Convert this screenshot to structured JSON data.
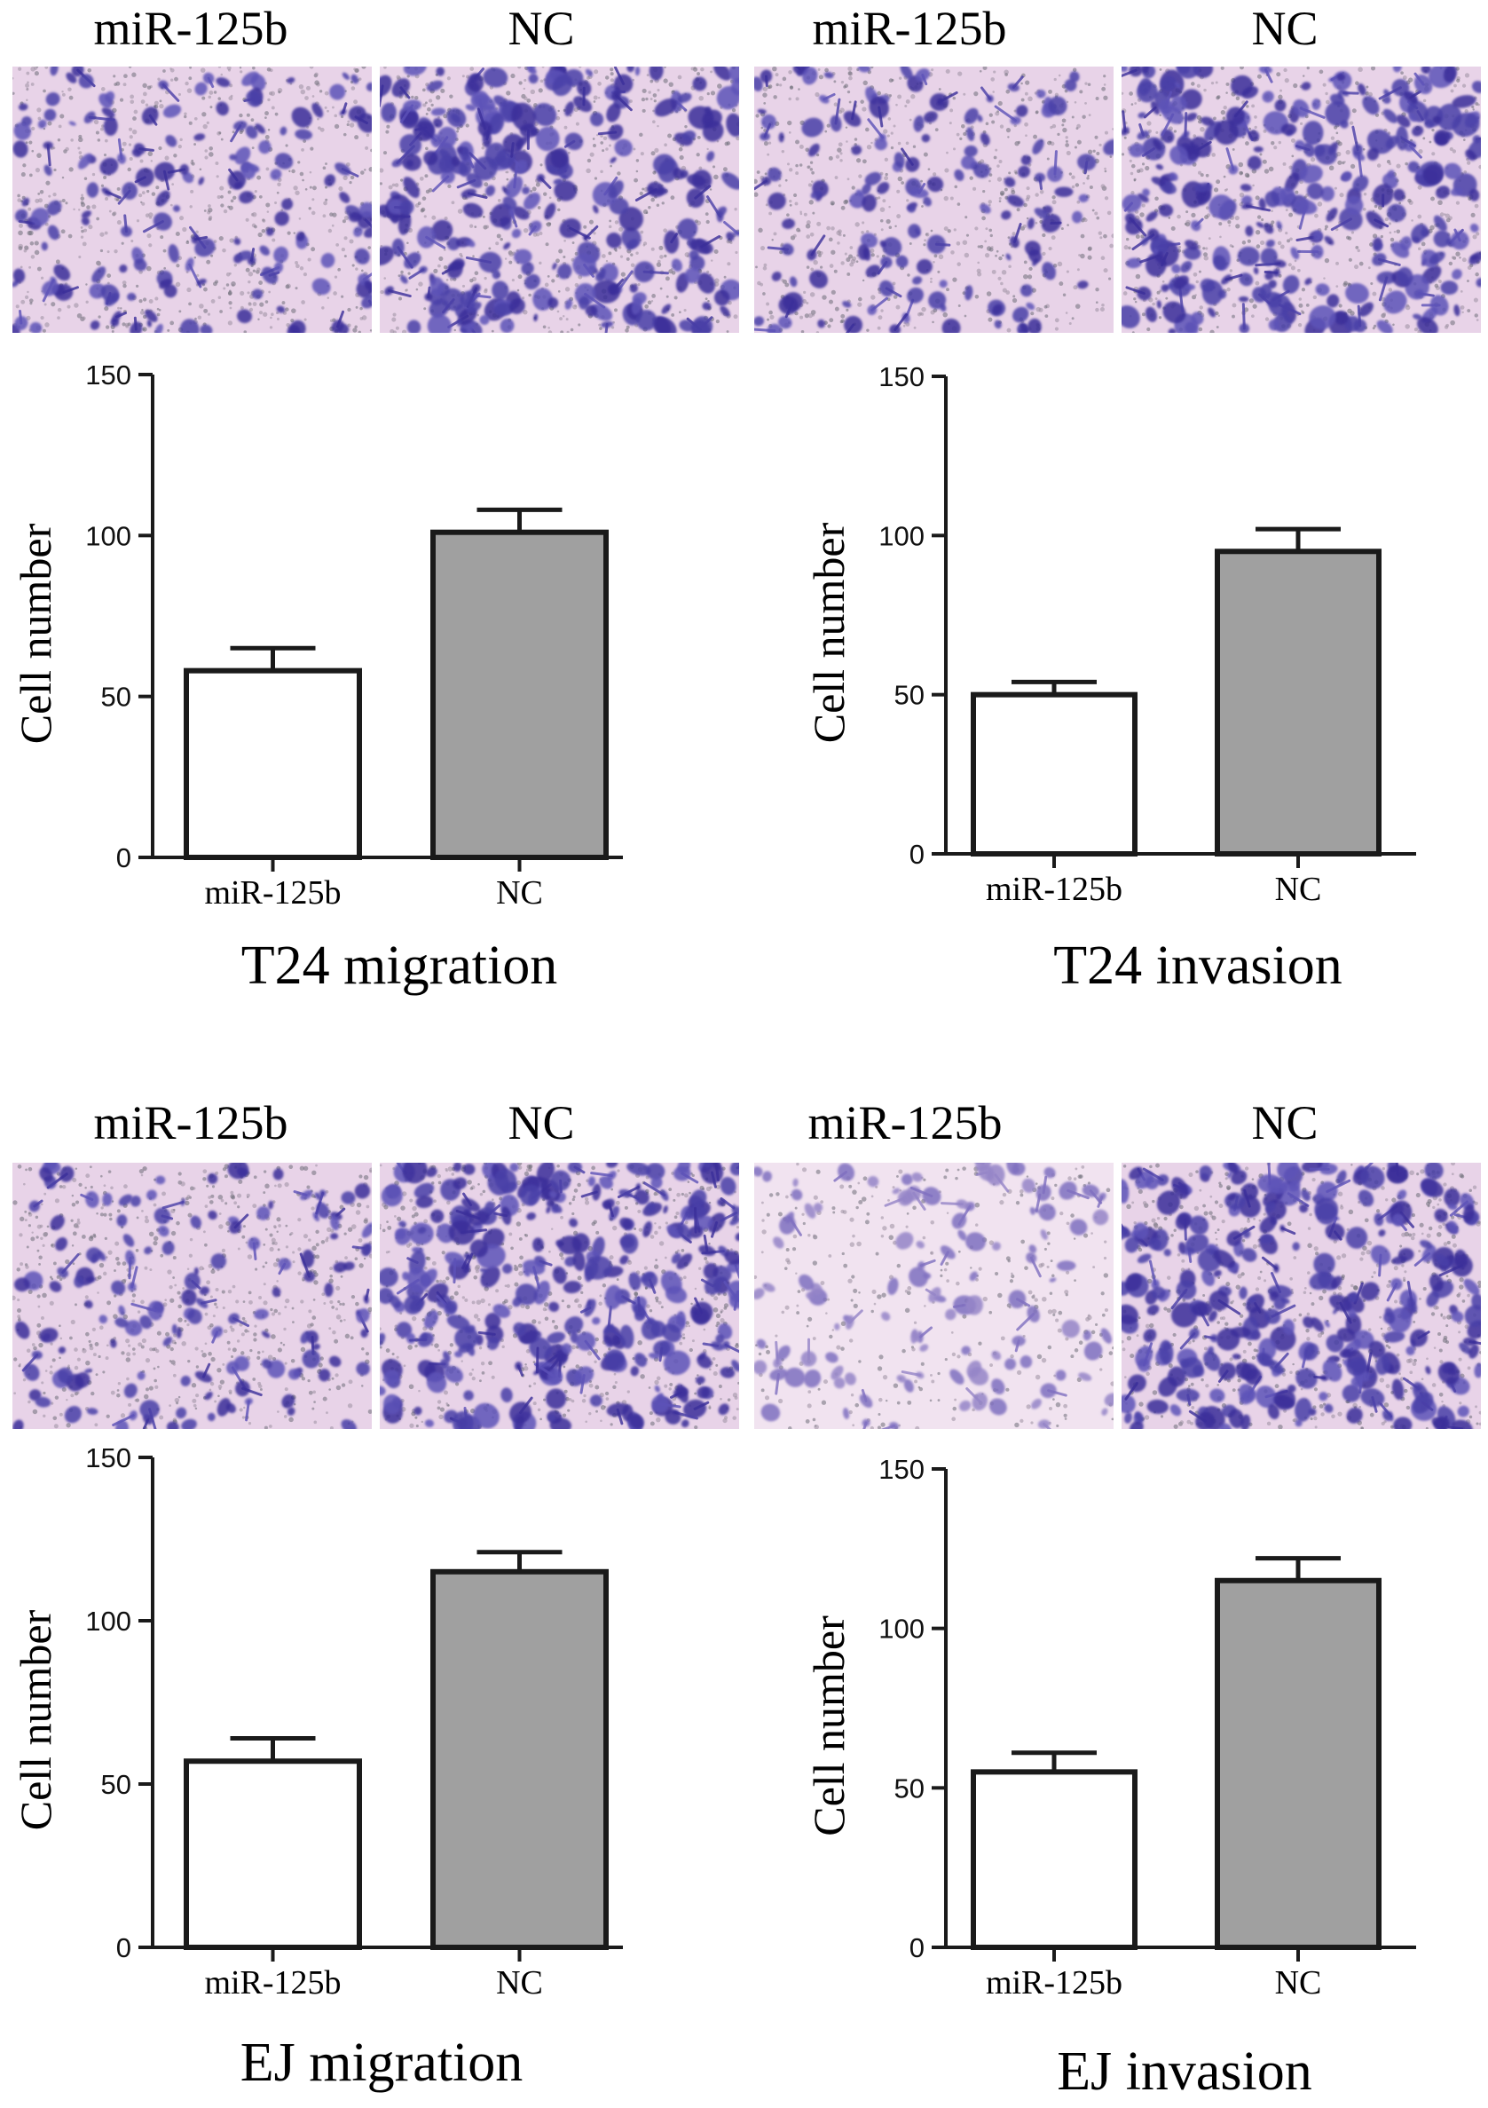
{
  "panels": [
    {
      "micrograph_labels": [
        "miR-125b",
        "NC"
      ],
      "title": "T24 migration"
    },
    {
      "micrograph_labels": [
        "miR-125b",
        "NC"
      ],
      "title": "T24 invasion"
    },
    {
      "micrograph_labels": [
        "miR-125b",
        "NC"
      ],
      "title": "EJ migration"
    },
    {
      "micrograph_labels": [
        "miR-125b",
        "NC"
      ],
      "title": "EJ invasion"
    }
  ],
  "colors": {
    "miR_bar": "#ffffff",
    "NC_bar": "#a0a0a0",
    "axis": "#1a1a1a",
    "micrograph_background": "#e8d3e8",
    "cell_stain": "#4a3fa8"
  },
  "chart_data": [
    {
      "type": "bar",
      "title": "T24 migration",
      "xlabel": "",
      "ylabel": "Cell number",
      "categories": [
        "miR-125b",
        "NC"
      ],
      "values": [
        58,
        101
      ],
      "error": [
        7,
        7
      ],
      "ylim": [
        0,
        150
      ],
      "yticks": [
        0,
        50,
        100,
        150
      ],
      "grid": false
    },
    {
      "type": "bar",
      "title": "T24 invasion",
      "xlabel": "",
      "ylabel": "Cell number",
      "categories": [
        "miR-125b",
        "NC"
      ],
      "values": [
        50,
        95
      ],
      "error": [
        4,
        7
      ],
      "ylim": [
        0,
        150
      ],
      "yticks": [
        0,
        50,
        100,
        150
      ],
      "grid": false
    },
    {
      "type": "bar",
      "title": "EJ migration",
      "xlabel": "",
      "ylabel": "Cell number",
      "categories": [
        "miR-125b",
        "NC"
      ],
      "values": [
        57,
        115
      ],
      "error": [
        7,
        6
      ],
      "ylim": [
        0,
        150
      ],
      "yticks": [
        0,
        50,
        100,
        150
      ],
      "grid": false
    },
    {
      "type": "bar",
      "title": "EJ invasion",
      "xlabel": "",
      "ylabel": "Cell number",
      "categories": [
        "miR-125b",
        "NC"
      ],
      "values": [
        55,
        115
      ],
      "error": [
        6,
        7
      ],
      "ylim": [
        0,
        150
      ],
      "yticks": [
        0,
        50,
        100,
        150
      ],
      "grid": false
    }
  ]
}
